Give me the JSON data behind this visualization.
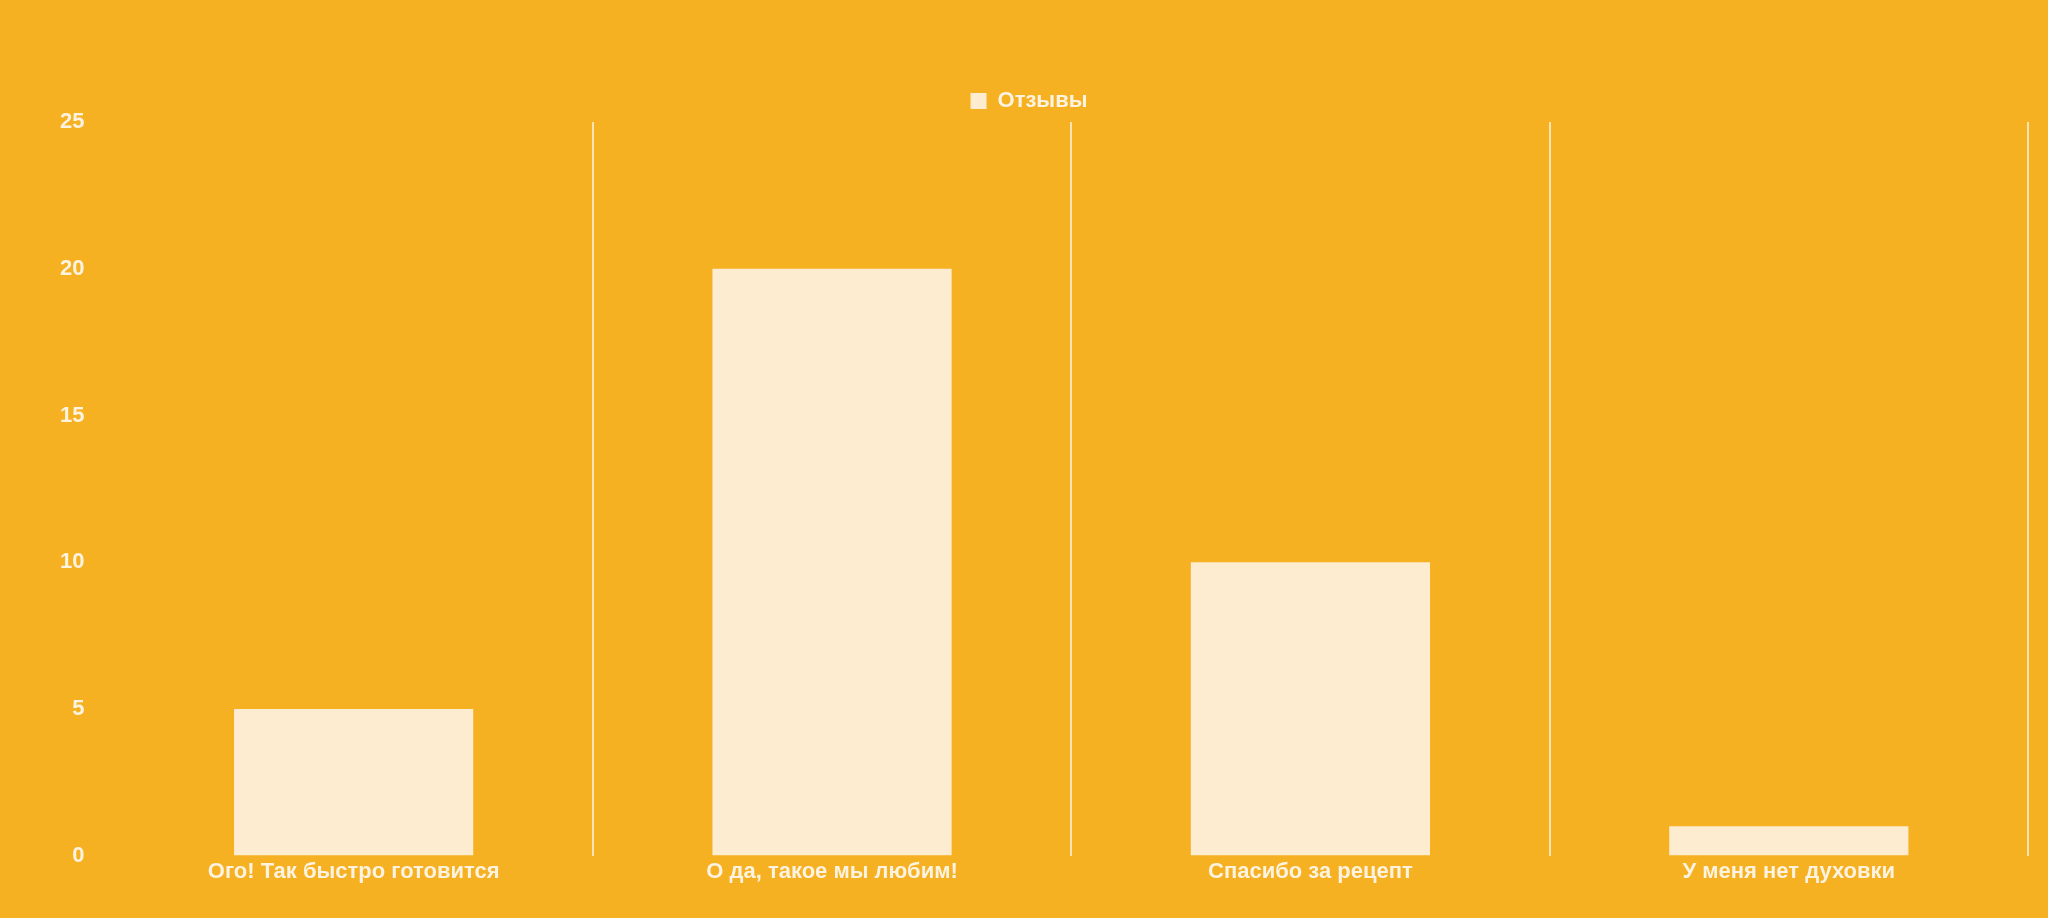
{
  "chart_data": {
    "type": "bar",
    "categories": [
      "Ого! Так быстро готовится",
      "О да, такое мы любим!",
      "Спасибо за рецепт",
      "У меня нет духовки"
    ],
    "series": [
      {
        "name": "Отзывы",
        "color": "#fdeccf",
        "values": [
          5,
          20,
          10,
          1
        ]
      }
    ],
    "ylim": [
      0,
      25
    ],
    "yticks": [
      0,
      5,
      10,
      15,
      20,
      25
    ],
    "grid": "x",
    "legend": "top"
  }
}
